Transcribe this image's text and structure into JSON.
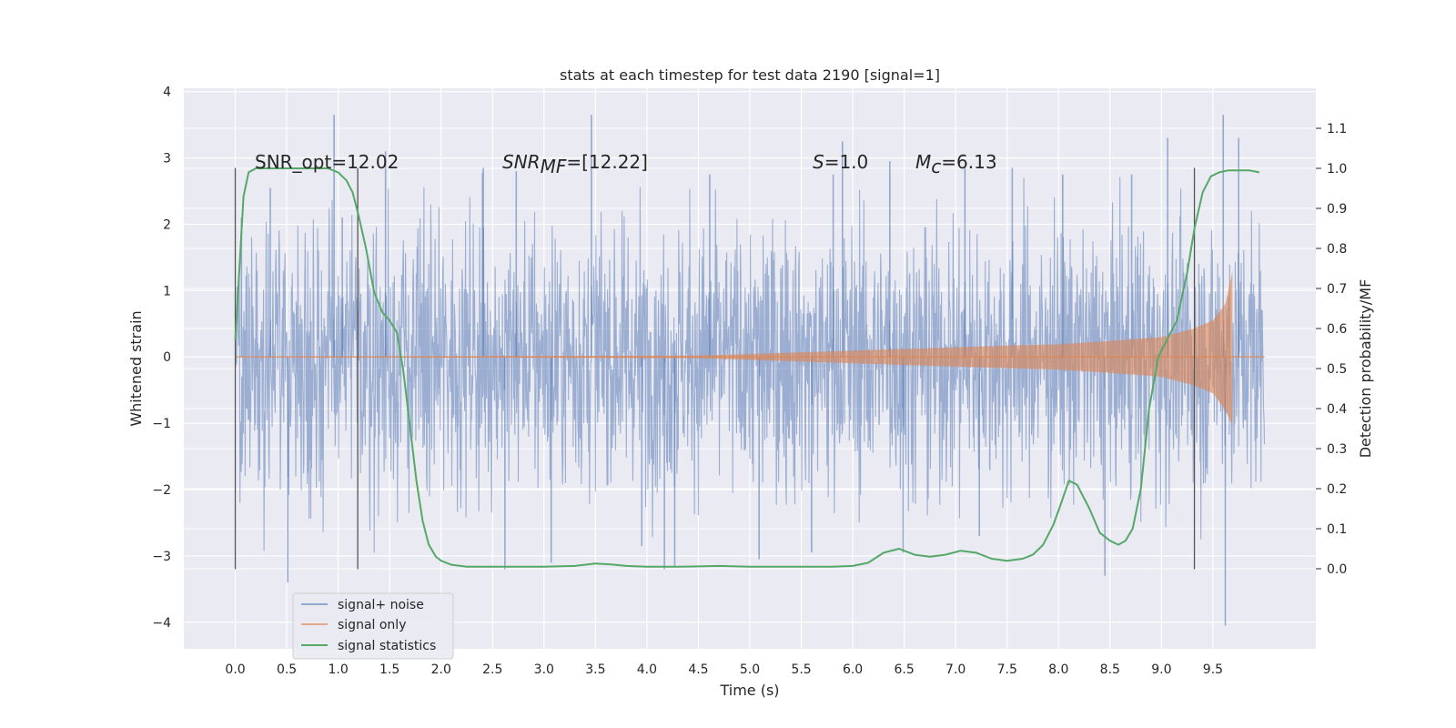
{
  "chart_data": {
    "type": "line",
    "title": "stats at each timestep for test data 2190 [signal=1]",
    "xlabel": "Time (s)",
    "ylabel": "Whitened strain",
    "y2label": "Detection probability/MF",
    "xlim": [
      -0.5,
      10.5
    ],
    "ylim": [
      -4.4,
      4.05
    ],
    "y2lim": [
      -0.2,
      1.2
    ],
    "grid": true,
    "x_ticks": [
      "0.0",
      "0.5",
      "1.0",
      "1.5",
      "2.0",
      "2.5",
      "3.0",
      "3.5",
      "4.0",
      "4.5",
      "5.0",
      "5.5",
      "6.0",
      "6.5",
      "7.0",
      "7.5",
      "8.0",
      "8.5",
      "9.0",
      "9.5"
    ],
    "y_ticks": [
      "4",
      "3",
      "2",
      "1",
      "0",
      "−1",
      "−2",
      "−3",
      "−4"
    ],
    "y2_ticks": [
      "1.1",
      "1.0",
      "0.9",
      "0.8",
      "0.7",
      "0.6",
      "0.5",
      "0.4",
      "0.3",
      "0.2",
      "0.1",
      "0.0"
    ],
    "annotations": {
      "snr_opt": "SNR_opt=12.02",
      "snr_mf_main": "SNR",
      "snr_mf_sub": "MF",
      "snr_mf_value": "=[12.22]",
      "s_main": "S",
      "s_value": "=1.0",
      "mc_main": "M",
      "mc_sub": "c",
      "mc_value": "=6.13"
    },
    "vertical_lines": [
      0.0,
      1.19,
      9.32
    ],
    "legend": {
      "position": "lower-left",
      "entries": [
        "signal+ noise",
        "signal only",
        "signal statistics"
      ]
    },
    "series": [
      {
        "name": "signal+ noise",
        "color": "#4c72b0",
        "kind": "noise",
        "x_range": [
          0.0,
          10.0
        ],
        "typical_amplitude": 1.0,
        "peaks": [
          [
            0.06,
            2.1
          ],
          [
            0.34,
            2.55
          ],
          [
            0.51,
            -3.4
          ],
          [
            0.96,
            3.65
          ],
          [
            1.04,
            2.1
          ],
          [
            1.46,
            3.1
          ],
          [
            2.41,
            2.85
          ],
          [
            2.62,
            -3.2
          ],
          [
            2.73,
            2.8
          ],
          [
            3.07,
            -3.1
          ],
          [
            3.46,
            3.65
          ],
          [
            3.95,
            -2.85
          ],
          [
            4.17,
            -3.2
          ],
          [
            4.27,
            -3.15
          ],
          [
            4.61,
            2.75
          ],
          [
            5.09,
            -3.05
          ],
          [
            5.6,
            -2.95
          ],
          [
            5.81,
            2.75
          ],
          [
            5.9,
            3.25
          ],
          [
            6.36,
            2.95
          ],
          [
            6.49,
            -2.95
          ],
          [
            7.09,
            2.85
          ],
          [
            7.23,
            -2.7
          ],
          [
            7.55,
            2.85
          ],
          [
            8.04,
            2.75
          ],
          [
            8.45,
            -3.3
          ],
          [
            8.71,
            2.75
          ],
          [
            9.06,
            3.3
          ],
          [
            9.6,
            3.65
          ],
          [
            9.75,
            3.3
          ],
          [
            9.62,
            -4.05
          ]
        ]
      },
      {
        "name": "signal only",
        "color": "#dd8452",
        "kind": "chirp",
        "x_range": [
          0.0,
          9.69
        ],
        "envelope": [
          [
            0.0,
            0.0
          ],
          [
            4.5,
            0.02
          ],
          [
            5.5,
            0.07
          ],
          [
            6.5,
            0.12
          ],
          [
            7.5,
            0.17
          ],
          [
            8.0,
            0.19
          ],
          [
            8.5,
            0.24
          ],
          [
            9.0,
            0.3
          ],
          [
            9.3,
            0.42
          ],
          [
            9.5,
            0.55
          ],
          [
            9.62,
            0.8
          ],
          [
            9.69,
            1.3
          ]
        ]
      },
      {
        "name": "signal statistics",
        "color": "#55a868",
        "axis": "right",
        "x": [
          0.0,
          0.04,
          0.08,
          0.13,
          0.2,
          0.3,
          0.45,
          0.6,
          0.8,
          0.9,
          1.0,
          1.08,
          1.14,
          1.2,
          1.27,
          1.35,
          1.43,
          1.5,
          1.57,
          1.63,
          1.7,
          1.76,
          1.82,
          1.88,
          1.95,
          2.0,
          2.1,
          2.25,
          2.5,
          2.8,
          3.0,
          3.3,
          3.5,
          3.65,
          3.8,
          4.0,
          4.3,
          4.7,
          5.0,
          5.5,
          5.8,
          6.0,
          6.15,
          6.3,
          6.45,
          6.6,
          6.75,
          6.9,
          7.05,
          7.2,
          7.35,
          7.5,
          7.65,
          7.75,
          7.85,
          7.95,
          8.02,
          8.1,
          8.18,
          8.3,
          8.4,
          8.5,
          8.58,
          8.65,
          8.72,
          8.8,
          8.88,
          8.97,
          9.05,
          9.15,
          9.25,
          9.32,
          9.4,
          9.48,
          9.56,
          9.65,
          9.75,
          9.85,
          9.95
        ],
        "y": [
          0.57,
          0.75,
          0.93,
          0.99,
          1.0,
          1.0,
          1.0,
          1.0,
          1.0,
          1.0,
          0.99,
          0.97,
          0.94,
          0.88,
          0.8,
          0.69,
          0.64,
          0.62,
          0.59,
          0.5,
          0.35,
          0.22,
          0.12,
          0.06,
          0.03,
          0.02,
          0.01,
          0.005,
          0.005,
          0.005,
          0.005,
          0.007,
          0.013,
          0.011,
          0.007,
          0.005,
          0.005,
          0.007,
          0.005,
          0.005,
          0.005,
          0.007,
          0.015,
          0.04,
          0.05,
          0.035,
          0.03,
          0.035,
          0.045,
          0.04,
          0.025,
          0.02,
          0.025,
          0.035,
          0.06,
          0.11,
          0.16,
          0.22,
          0.21,
          0.15,
          0.09,
          0.07,
          0.06,
          0.07,
          0.1,
          0.2,
          0.4,
          0.53,
          0.57,
          0.62,
          0.74,
          0.85,
          0.94,
          0.98,
          0.99,
          0.995,
          0.995,
          0.995,
          0.99
        ]
      }
    ]
  }
}
